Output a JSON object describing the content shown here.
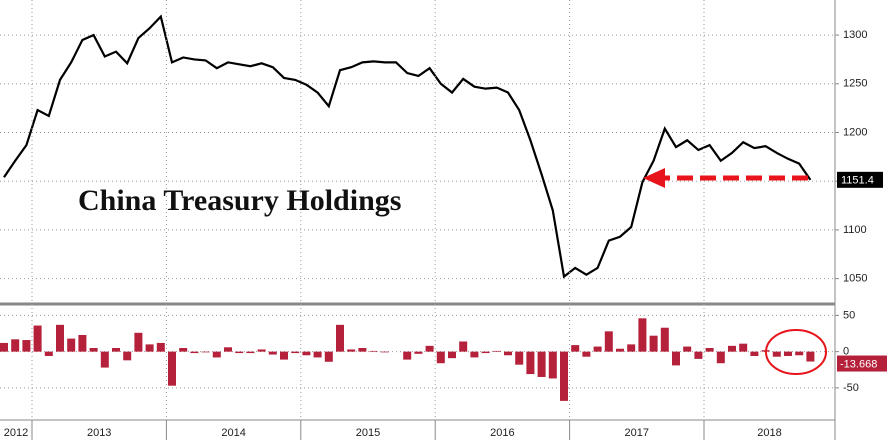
{
  "chart_data": [
    {
      "type": "line",
      "title": "China Treasury Holdings",
      "color": "#000000",
      "values": [
        1154,
        1171,
        1187,
        1223,
        1217,
        1254,
        1272,
        1295,
        1300,
        1278,
        1283,
        1271,
        1297,
        1307,
        1319,
        1272,
        1277,
        1275,
        1274,
        1266,
        1272,
        1270,
        1268,
        1271,
        1267,
        1256,
        1254,
        1249,
        1241,
        1227,
        1264,
        1267,
        1272,
        1273,
        1272,
        1272,
        1261,
        1258,
        1266,
        1250,
        1241,
        1255,
        1247,
        1245,
        1246,
        1241,
        1223,
        1192,
        1157,
        1120,
        1052,
        1061,
        1054,
        1061,
        1089,
        1093,
        1103,
        1149,
        1171,
        1204,
        1185,
        1192,
        1182,
        1187,
        1171,
        1179,
        1190,
        1184,
        1186,
        1179,
        1173,
        1168,
        1151.4
      ],
      "ylim": [
        1026,
        1336
      ],
      "yticks": [
        1050,
        1100,
        1150,
        1200,
        1250,
        1300
      ],
      "grid": true
    },
    {
      "type": "bar",
      "color": "#b5203a",
      "values": [
        12,
        17,
        16,
        36,
        -6,
        37,
        18,
        23,
        5,
        -22,
        5,
        -12,
        26,
        10,
        12,
        -47,
        5,
        -2,
        -1,
        -8,
        6,
        -2,
        -2,
        3,
        -4,
        -11,
        -2,
        -5,
        -8,
        -14,
        37,
        3,
        5,
        1,
        -1,
        0,
        -11,
        -3,
        8,
        -16,
        -9,
        14,
        -8,
        -2,
        1,
        -5,
        -18,
        -31,
        -35,
        -37,
        -68,
        9,
        -7,
        7,
        28,
        4,
        10,
        46,
        22,
        33,
        -19,
        7,
        -10,
        5,
        -16,
        8,
        11,
        -6,
        2,
        -7,
        -6,
        -5,
        -13.668
      ],
      "ylim": [
        -93,
        63
      ],
      "yticks": [
        50,
        0,
        -50
      ],
      "grid": true,
      "xticks": [
        {
          "value": -9,
          "label": "2012"
        },
        {
          "value": 3,
          "label": "2013"
        },
        {
          "value": 15,
          "label": "2014"
        },
        {
          "value": 27,
          "label": "2015"
        },
        {
          "value": 39,
          "label": "2016"
        },
        {
          "value": 51,
          "label": "2017"
        },
        {
          "value": 63,
          "label": "2018"
        }
      ]
    }
  ]
}
